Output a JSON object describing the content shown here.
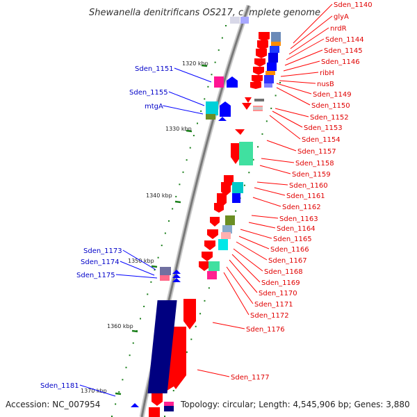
{
  "title": "Shewanella denitrificans OS217, complete genome",
  "footer": {
    "accession": "Accession: NC_007954",
    "summary": "Topology: circular; Length: 4,545,906 bp; Genes: 3,880"
  },
  "ticks": [
    "1320 kbp",
    "1330 kbp",
    "1340 kbp",
    "1350 kbp",
    "1360 kbp",
    "1370 kbp"
  ],
  "right_labels": [
    "Sden_1140",
    "glyA",
    "nrdR",
    "Sden_1144",
    "Sden_1145",
    "Sden_1146",
    "ribH",
    "nusB",
    "Sden_1149",
    "Sden_1150",
    "Sden_1152",
    "Sden_1153",
    "Sden_1154",
    "Sden_1157",
    "Sden_1158",
    "Sden_1159",
    "Sden_1160",
    "Sden_1161",
    "Sden_1162",
    "Sden_1163",
    "Sden_1164",
    "Sden_1165",
    "Sden_1166",
    "Sden_1167",
    "Sden_1168",
    "Sden_1169",
    "Sden_1170",
    "Sden_1171",
    "Sden_1172",
    "Sden_1176",
    "Sden_1177"
  ],
  "left_labels": [
    "Sden_1151",
    "Sden_1155",
    "mtgA",
    "Sden_1173",
    "Sden_1174",
    "Sden_1175",
    "Sden_1181"
  ],
  "colors": {
    "backbone": "#8c8c8c",
    "reverse_strand": "#ff0000",
    "forward_strand": "#0000ff",
    "right_label": "#e00000",
    "left_label": "#0000c8",
    "tick": "#1a7f1a"
  }
}
